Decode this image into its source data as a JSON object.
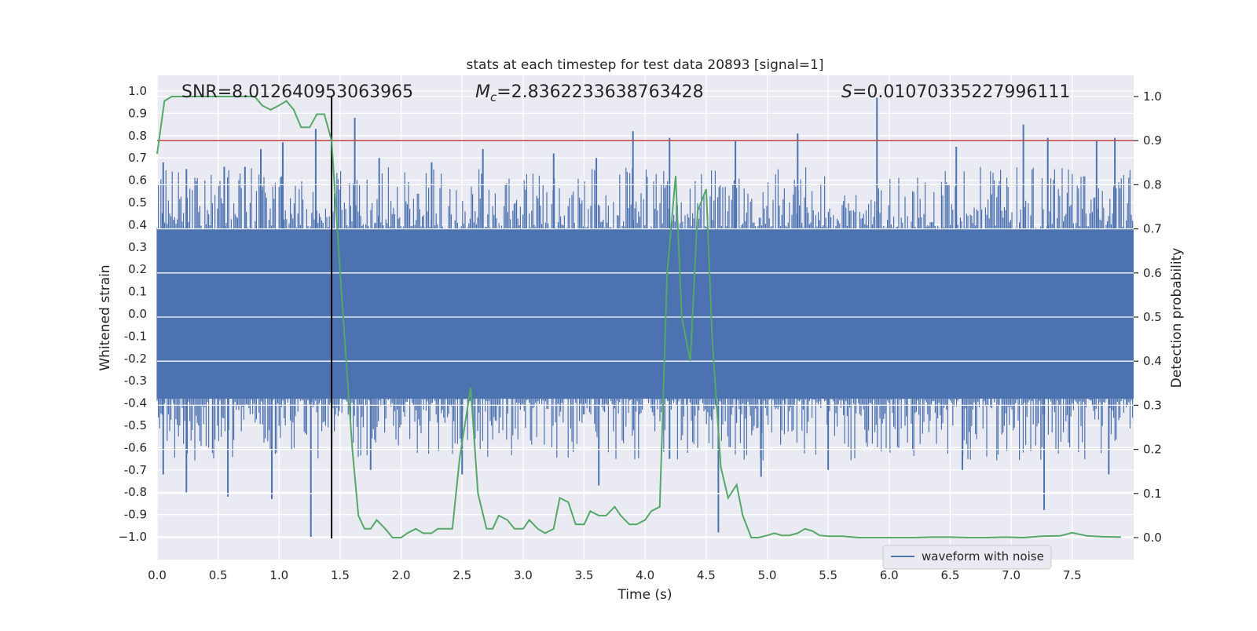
{
  "chart_data": {
    "type": "line",
    "title": "stats at each timestep for test data 20893 [signal=1]",
    "xlabel": "Time (s)",
    "ylabel": "Whitened strain",
    "y2label": "Detection probability",
    "xlim": [
      0.0,
      8.0
    ],
    "ylim": [
      -1.095,
      1.07
    ],
    "y2lim": [
      -0.05,
      1.035
    ],
    "x_ticks": [
      "0.0",
      "0.5",
      "1.0",
      "1.5",
      "2.0",
      "2.5",
      "3.0",
      "3.5",
      "4.0",
      "4.5",
      "5.0",
      "5.5",
      "6.0",
      "6.5",
      "7.0",
      "7.5"
    ],
    "y_ticks": [
      "1.0",
      "0.9",
      "0.8",
      "0.7",
      "0.6",
      "0.5",
      "0.4",
      "0.3",
      "0.2",
      "0.1",
      "0.0",
      "-0.1",
      "-0.2",
      "-0.3",
      "-0.4",
      "-0.5",
      "-0.6",
      "-0.7",
      "-0.8",
      "-0.9",
      "−1.0"
    ],
    "y2_ticks": [
      "1.0",
      "0.9",
      "0.8",
      "0.7",
      "0.6",
      "0.5",
      "0.4",
      "0.3",
      "0.2",
      "0.1",
      "0.0"
    ],
    "annotations": {
      "snr": "SNR=8.012640953063965",
      "mc_symbol": "M",
      "mc_subscript": "c",
      "mc_value": "=2.8362233638763428",
      "s_symbol": "S",
      "s_value": "=0.010703352279961​11"
    },
    "threshold": {
      "value": 0.9,
      "axis": "right",
      "color": "#c44e52"
    },
    "marker_time": 1.43,
    "legend": {
      "label": "waveform with noise",
      "placement": "lower-right"
    },
    "series": [
      {
        "name": "waveform with noise",
        "axis": "left",
        "color": "#4c72b0",
        "style": "dense-noise",
        "typical_envelope": [
          -0.38,
          0.38
        ],
        "spikes": [
          {
            "t": 0.05,
            "v": 0.68
          },
          {
            "t": 0.24,
            "v": 0.65
          },
          {
            "t": 0.55,
            "v": 0.66
          },
          {
            "t": 0.72,
            "v": 0.66
          },
          {
            "t": 0.85,
            "v": 0.74
          },
          {
            "t": 1.03,
            "v": 0.77
          },
          {
            "t": 1.3,
            "v": 0.83
          },
          {
            "t": 1.62,
            "v": 0.88
          },
          {
            "t": 1.82,
            "v": 0.7
          },
          {
            "t": 2.25,
            "v": 0.68
          },
          {
            "t": 2.67,
            "v": 0.74
          },
          {
            "t": 3.25,
            "v": 0.72
          },
          {
            "t": 3.6,
            "v": 0.7
          },
          {
            "t": 3.9,
            "v": 0.82
          },
          {
            "t": 4.2,
            "v": 0.79
          },
          {
            "t": 4.74,
            "v": 0.78
          },
          {
            "t": 5.25,
            "v": 0.81
          },
          {
            "t": 5.9,
            "v": 0.97
          },
          {
            "t": 6.55,
            "v": 0.75
          },
          {
            "t": 7.1,
            "v": 0.85
          },
          {
            "t": 7.3,
            "v": 0.79
          },
          {
            "t": 7.7,
            "v": 0.78
          },
          {
            "t": 7.85,
            "v": 0.79
          },
          {
            "t": 0.05,
            "v": -0.72
          },
          {
            "t": 0.24,
            "v": -0.8
          },
          {
            "t": 0.58,
            "v": -0.82
          },
          {
            "t": 0.94,
            "v": -0.83
          },
          {
            "t": 1.26,
            "v": -1.0
          },
          {
            "t": 1.43,
            "v": -0.6
          },
          {
            "t": 1.75,
            "v": -0.7
          },
          {
            "t": 2.5,
            "v": -0.72
          },
          {
            "t": 3.62,
            "v": -0.77
          },
          {
            "t": 4.2,
            "v": -0.65
          },
          {
            "t": 4.6,
            "v": -0.98
          },
          {
            "t": 4.95,
            "v": -0.73
          },
          {
            "t": 5.5,
            "v": -0.7
          },
          {
            "t": 6.6,
            "v": -0.7
          },
          {
            "t": 7.27,
            "v": -0.88
          },
          {
            "t": 7.8,
            "v": -0.72
          }
        ]
      },
      {
        "name": "detection probability",
        "axis": "right",
        "color": "#55a868",
        "x": [
          0.0,
          0.06,
          0.12,
          0.18,
          0.25,
          0.35,
          0.5,
          0.65,
          0.8,
          0.86,
          0.93,
          1.0,
          1.06,
          1.12,
          1.18,
          1.25,
          1.31,
          1.37,
          1.43,
          1.5,
          1.55,
          1.6,
          1.65,
          1.7,
          1.75,
          1.8,
          1.87,
          1.93,
          2.0,
          2.05,
          2.12,
          2.18,
          2.25,
          2.3,
          2.35,
          2.42,
          2.48,
          2.57,
          2.63,
          2.7,
          2.75,
          2.8,
          2.87,
          2.93,
          3.0,
          3.05,
          3.12,
          3.18,
          3.25,
          3.3,
          3.37,
          3.43,
          3.5,
          3.55,
          3.62,
          3.68,
          3.75,
          3.8,
          3.87,
          3.93,
          4.0,
          4.05,
          4.12,
          4.18,
          4.25,
          4.3,
          4.37,
          4.43,
          4.5,
          4.55,
          4.62,
          4.68,
          4.75,
          4.8,
          4.87,
          4.93,
          5.0,
          5.06,
          5.12,
          5.18,
          5.25,
          5.31,
          5.37,
          5.43,
          5.5,
          5.62,
          5.75,
          5.9,
          6.05,
          6.2,
          6.35,
          6.5,
          6.65,
          6.8,
          6.95,
          7.1,
          7.25,
          7.4,
          7.5,
          7.62,
          7.75,
          7.9
        ],
        "y": [
          0.87,
          0.99,
          1.0,
          1.0,
          1.0,
          1.0,
          1.0,
          1.0,
          1.0,
          0.98,
          0.97,
          0.98,
          0.99,
          0.97,
          0.93,
          0.93,
          0.96,
          0.96,
          0.9,
          0.6,
          0.4,
          0.2,
          0.05,
          0.02,
          0.02,
          0.04,
          0.02,
          0.0,
          0.0,
          0.01,
          0.02,
          0.01,
          0.01,
          0.02,
          0.02,
          0.02,
          0.18,
          0.34,
          0.1,
          0.02,
          0.02,
          0.05,
          0.04,
          0.02,
          0.02,
          0.04,
          0.02,
          0.01,
          0.02,
          0.09,
          0.08,
          0.03,
          0.03,
          0.06,
          0.05,
          0.05,
          0.07,
          0.05,
          0.03,
          0.03,
          0.04,
          0.06,
          0.07,
          0.6,
          0.82,
          0.5,
          0.4,
          0.74,
          0.79,
          0.45,
          0.16,
          0.09,
          0.12,
          0.05,
          0.0,
          0.0,
          0.005,
          0.01,
          0.005,
          0.005,
          0.01,
          0.02,
          0.015,
          0.005,
          0.003,
          0.003,
          0.0,
          0.0,
          0.0,
          0.0,
          0.001,
          0.001,
          0.0,
          0.0,
          0.001,
          0.0,
          0.003,
          0.004,
          0.011,
          0.004,
          0.002,
          0.001
        ]
      }
    ]
  }
}
